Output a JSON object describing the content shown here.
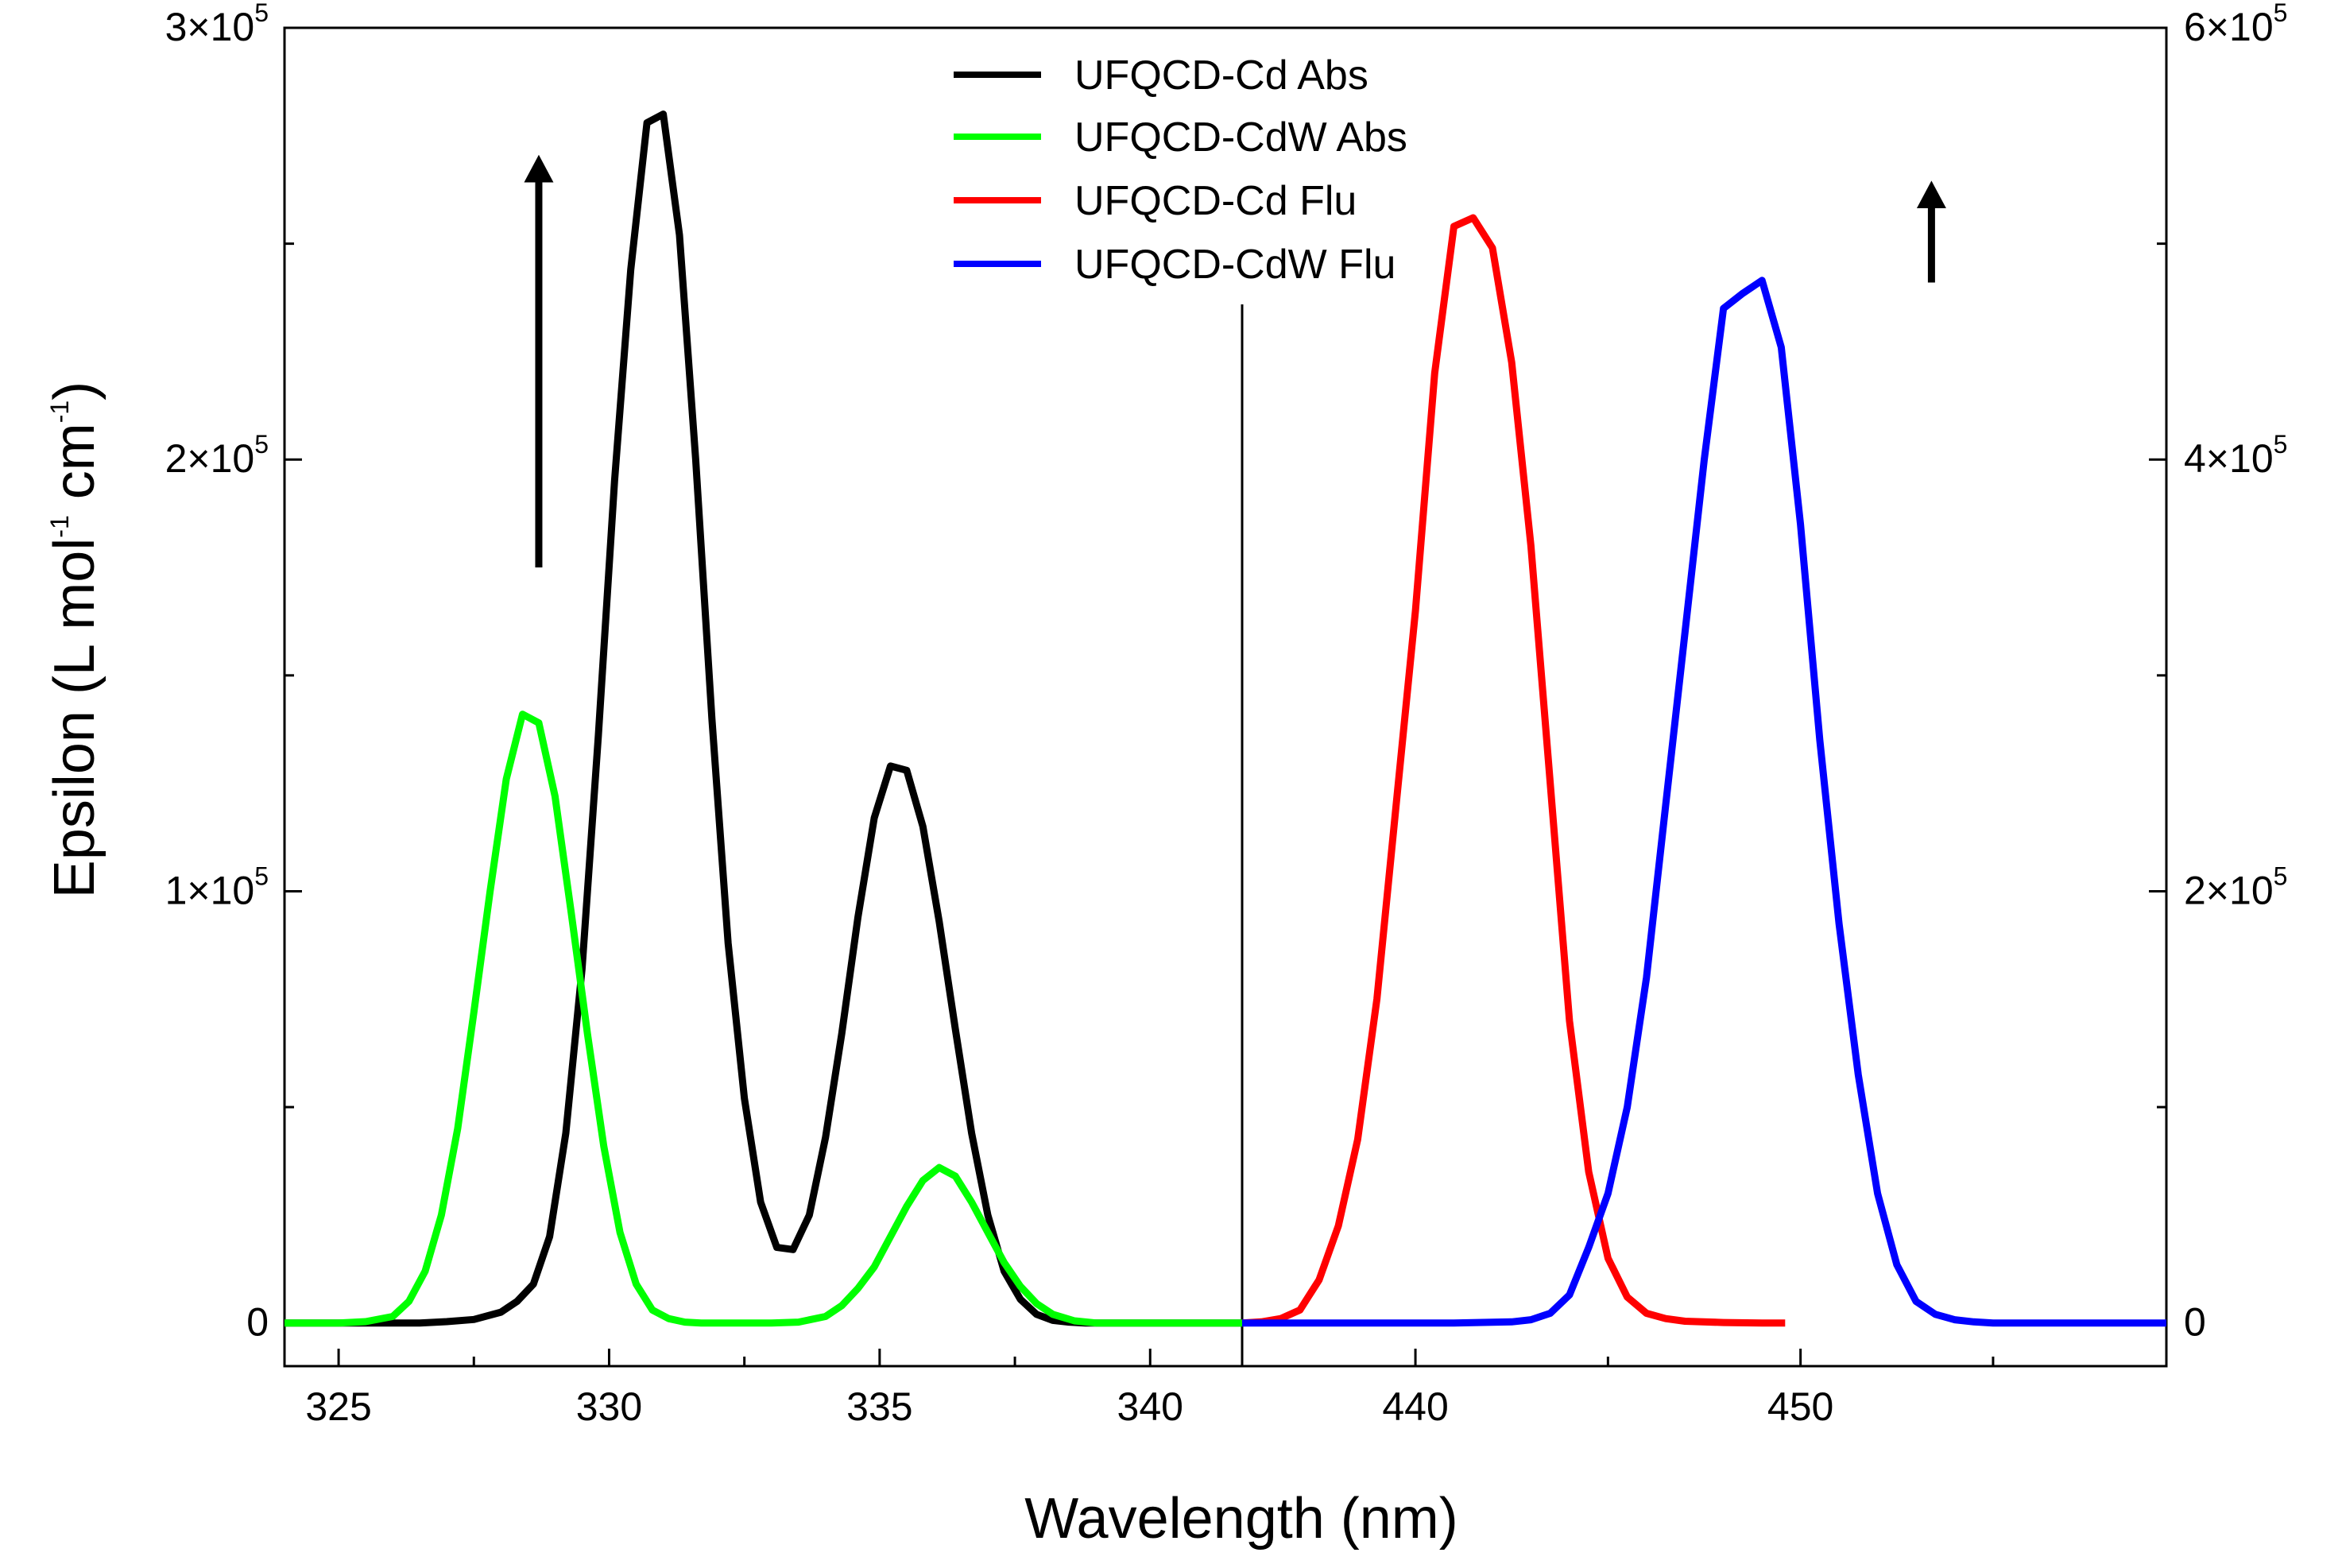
{
  "chart_data": {
    "type": "line",
    "x_label": "Wavelength (nm)",
    "y_left_label_parts": [
      "Epsilon (L mol",
      "-1",
      " cm",
      "-1",
      ")"
    ],
    "left_panel": {
      "x_range": [
        324,
        341.7
      ],
      "x_ticks": [
        325,
        330,
        335,
        340
      ],
      "x_tick_labels": [
        "325",
        "330",
        "335",
        "340"
      ],
      "x_minor_ticks": [
        327.5,
        332.5,
        337.5
      ]
    },
    "right_panel": {
      "x_range": [
        435.5,
        459.5
      ],
      "x_ticks": [
        440,
        450
      ],
      "x_tick_labels": [
        "440",
        "450"
      ],
      "x_minor_ticks": [
        435,
        445,
        455
      ]
    },
    "y_left": {
      "range": [
        -10000,
        300000
      ],
      "ticks": [
        0,
        100000,
        200000,
        300000
      ],
      "tick_labels": [
        {
          "mantissa": "0",
          "exponent": ""
        },
        {
          "mantissa": "1×10",
          "exponent": "5"
        },
        {
          "mantissa": "2×10",
          "exponent": "5"
        },
        {
          "mantissa": "3×10",
          "exponent": "5"
        }
      ],
      "minor_ticks": [
        50000,
        150000,
        250000
      ]
    },
    "y_right": {
      "range": [
        -20000,
        600000
      ],
      "ticks": [
        0,
        200000,
        400000,
        600000
      ],
      "tick_labels": [
        {
          "mantissa": "0",
          "exponent": ""
        },
        {
          "mantissa": "2×10",
          "exponent": "5"
        },
        {
          "mantissa": "4×10",
          "exponent": "5"
        },
        {
          "mantissa": "6×10",
          "exponent": "5"
        }
      ],
      "minor_ticks": [
        100000,
        300000,
        500000
      ]
    },
    "series": [
      {
        "name": "UFQCD-Cd Abs",
        "color": "#000000",
        "panel": "left",
        "x": [
          324,
          325,
          326,
          326.5,
          327,
          327.5,
          328,
          328.3,
          328.6,
          328.9,
          329.2,
          329.5,
          329.8,
          330.1,
          330.4,
          330.7,
          331.0,
          331.3,
          331.6,
          331.9,
          332.2,
          332.5,
          332.8,
          333.1,
          333.4,
          333.7,
          334.0,
          334.3,
          334.6,
          334.9,
          335.2,
          335.5,
          335.8,
          336.1,
          336.4,
          336.7,
          337.0,
          337.3,
          337.6,
          337.9,
          338.2,
          338.5,
          338.8,
          339.2,
          339.6,
          340,
          341,
          341.7
        ],
        "y": [
          0,
          0,
          0,
          0,
          300,
          800,
          2500,
          5000,
          9000,
          20000,
          44000,
          82000,
          136000,
          195000,
          244000,
          278000,
          280000,
          252000,
          200000,
          140000,
          88000,
          52000,
          28000,
          17500,
          17000,
          25000,
          43000,
          67000,
          94000,
          117000,
          129000,
          128000,
          115000,
          93000,
          68000,
          44000,
          25000,
          12000,
          5500,
          2000,
          600,
          200,
          0,
          0,
          0,
          0,
          0,
          0
        ]
      },
      {
        "name": "UFQCD-CdW Abs",
        "color": "#00ff00",
        "panel": "left",
        "x": [
          324,
          325,
          325.5,
          326,
          326.3,
          326.6,
          326.9,
          327.2,
          327.5,
          327.8,
          328.1,
          328.4,
          328.7,
          329.0,
          329.3,
          329.6,
          329.9,
          330.2,
          330.5,
          330.8,
          331.1,
          331.4,
          331.7,
          332.0,
          332.5,
          333,
          333.5,
          334,
          334.3,
          334.6,
          334.9,
          335.2,
          335.5,
          335.8,
          336.1,
          336.4,
          336.7,
          337.0,
          337.3,
          337.6,
          337.9,
          338.2,
          338.6,
          339,
          340,
          341.7
        ],
        "y": [
          0,
          0,
          300,
          1500,
          5000,
          12000,
          25000,
          45000,
          72000,
          100000,
          126000,
          141000,
          139000,
          122000,
          95000,
          67000,
          41000,
          21000,
          9000,
          3000,
          1000,
          200,
          0,
          0,
          0,
          0,
          200,
          1500,
          4000,
          8000,
          13000,
          20000,
          27000,
          33000,
          36000,
          34000,
          28000,
          21000,
          14000,
          8500,
          4500,
          2000,
          500,
          0,
          0,
          0
        ]
      },
      {
        "name": "UFQCD-Cd Flu",
        "color": "#ff0000",
        "panel": "right",
        "x": [
          435.5,
          436,
          436.5,
          437,
          437.5,
          438,
          438.5,
          439,
          439.5,
          440,
          440.5,
          441,
          441.5,
          442,
          442.5,
          443,
          443.5,
          444,
          444.5,
          445,
          445.5,
          446,
          446.5,
          447,
          448,
          449,
          449.6
        ],
        "y": [
          0,
          500,
          2000,
          6000,
          20000,
          45000,
          85000,
          150000,
          240000,
          330000,
          440000,
          508000,
          512000,
          498000,
          445000,
          360000,
          250000,
          140000,
          70000,
          30000,
          12000,
          4500,
          2000,
          800,
          200,
          0,
          0
        ]
      },
      {
        "name": "UFQCD-CdW Flu",
        "color": "#0000ff",
        "panel": "right",
        "x": [
          435.5,
          438,
          441,
          442.5,
          443,
          443.5,
          444,
          444.5,
          445,
          445.5,
          446,
          446.5,
          447,
          447.5,
          448,
          448.5,
          449,
          449.5,
          450,
          450.5,
          451,
          451.5,
          452,
          452.5,
          453,
          453.5,
          454,
          454.5,
          455,
          456,
          457,
          458,
          459,
          459.5
        ],
        "y": [
          0,
          0,
          0,
          500,
          1500,
          4500,
          13000,
          35000,
          60000,
          100000,
          160000,
          240000,
          320000,
          400000,
          470000,
          477000,
          483000,
          452000,
          370000,
          270000,
          185000,
          115000,
          60000,
          27000,
          10000,
          4000,
          1500,
          500,
          0,
          0,
          0,
          0,
          0,
          0
        ]
      }
    ],
    "legend": {
      "location": "top-center",
      "entries": [
        "UFQCD-Cd Abs",
        "UFQCD-CdW Abs",
        "UFQCD-Cd Flu",
        "UFQCD-CdW Flu"
      ]
    },
    "annotations": [
      {
        "type": "arrow-up",
        "panel": "left",
        "x": 328.7,
        "y_from": 175000,
        "y_to": 270000,
        "axis": "y_left"
      },
      {
        "type": "arrow-up",
        "panel": "right",
        "x": 453.4,
        "y_from": 482000,
        "y_to": 528000,
        "axis": "y_right"
      }
    ]
  }
}
